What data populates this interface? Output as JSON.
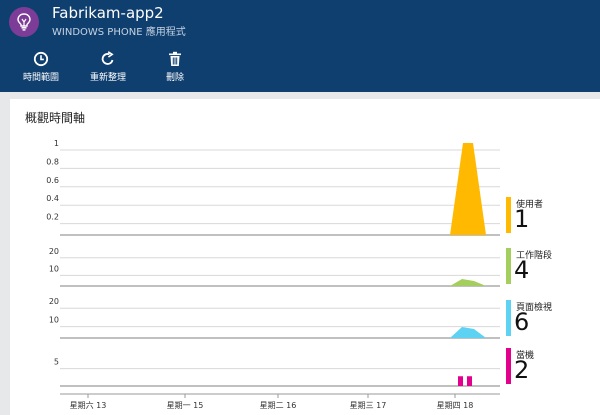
{
  "header": {
    "title": "Fabrikam-app2",
    "subtitle": "WINDOWS PHONE 應用程式",
    "icon": "lightbulb-icon",
    "background": "#0f3f6f",
    "icon_color": "#7d3c98"
  },
  "toolbar": {
    "items": [
      {
        "icon": "clock-icon",
        "label": "時間範圍"
      },
      {
        "icon": "refresh-icon",
        "label": "重新整理"
      },
      {
        "icon": "trash-icon",
        "label": "刪除"
      }
    ]
  },
  "panel": {
    "title": "概觀時間軸"
  },
  "chart_data": {
    "type": "area",
    "x_categories": [
      "星期六 13",
      "星期一 15",
      "星期二 16",
      "星期三 17",
      "星期四 18"
    ],
    "grid": true,
    "panels": [
      {
        "name": "使用者",
        "total": "1",
        "color": "#ffb900",
        "ylim": [
          0,
          1
        ],
        "y_ticks": [
          "1",
          "0.8",
          "0.6",
          "0.4",
          "0.2"
        ],
        "y_tick_values": [
          1,
          0.8,
          0.6,
          0.4,
          0.2
        ],
        "values": [
          0,
          0,
          0,
          0,
          1
        ]
      },
      {
        "name": "工作階段",
        "total": "4",
        "color": "#a4cf5e",
        "ylim": [
          0,
          25
        ],
        "y_ticks": [
          "20",
          "10"
        ],
        "y_tick_values": [
          20,
          10
        ],
        "values": [
          0,
          0,
          0,
          0,
          4
        ]
      },
      {
        "name": "頁面檢視",
        "total": "6",
        "color": "#5ed2f2",
        "ylim": [
          0,
          25
        ],
        "y_ticks": [
          "20",
          "10"
        ],
        "y_tick_values": [
          20,
          10
        ],
        "values": [
          0,
          0,
          0,
          0,
          6
        ]
      },
      {
        "name": "當機",
        "total": "2",
        "color": "#e3008c",
        "ylim": [
          0,
          8
        ],
        "y_ticks": [
          "5"
        ],
        "y_tick_values": [
          5
        ],
        "values": [
          0,
          0,
          0,
          0,
          2
        ]
      }
    ]
  }
}
